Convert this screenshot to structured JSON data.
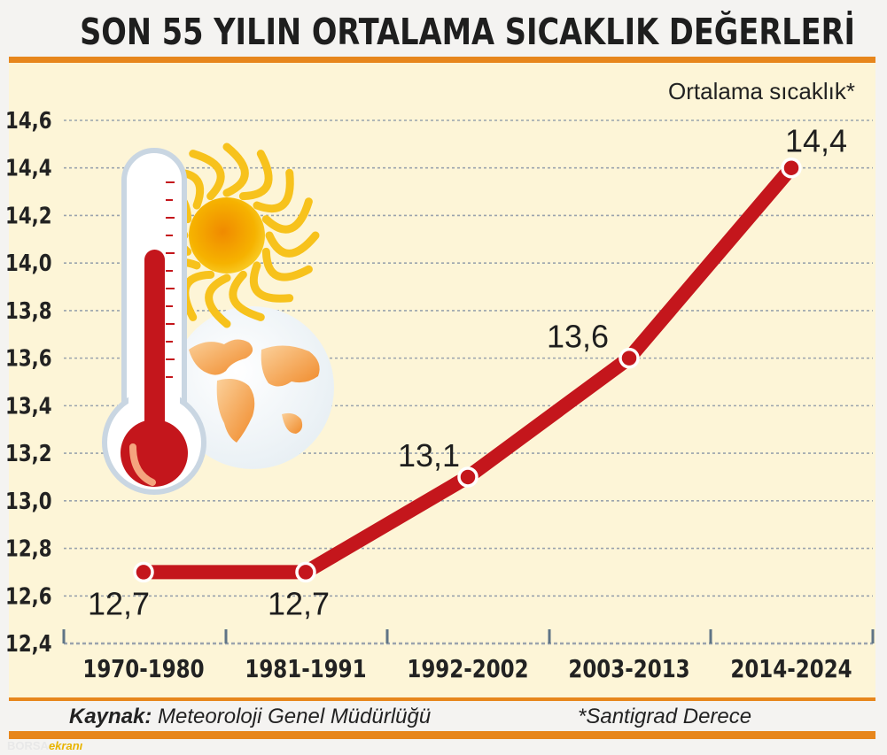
{
  "title": "SON 55 YILIN ORTALAMA SICAKLIK DEĞERLERİ",
  "unit_label": "Ortalama sıcaklık*",
  "footer": {
    "source_label": "Kaynak:",
    "source_text": "Meteoroloji Genel Müdürlüğü",
    "note": "*Santigrad Derece"
  },
  "logo": {
    "part1": "BORSA",
    "part2": "ekranı"
  },
  "colors": {
    "line": "#c4161c",
    "accent_bar": "#e7861c",
    "panel": "#fdf5d7",
    "grid": "#9aa3ad"
  },
  "icons": [
    "thermometer-icon",
    "sun-icon",
    "globe-icon"
  ],
  "chart_data": {
    "type": "line",
    "categories": [
      "1970-1980",
      "1981-1991",
      "1992-2002",
      "2003-2013",
      "2014-2024"
    ],
    "values": [
      12.7,
      12.7,
      13.1,
      13.6,
      14.4
    ],
    "data_labels": [
      "12,7",
      "12,7",
      "13,1",
      "13,6",
      "14,4"
    ],
    "yticks": [
      "12,4",
      "12,6",
      "12,8",
      "13,0",
      "13,2",
      "13,4",
      "13,6",
      "13,8",
      "14,0",
      "14,2",
      "14,4",
      "14,6"
    ],
    "ylim": [
      12.4,
      14.6
    ],
    "grid": true,
    "legend": "none"
  }
}
